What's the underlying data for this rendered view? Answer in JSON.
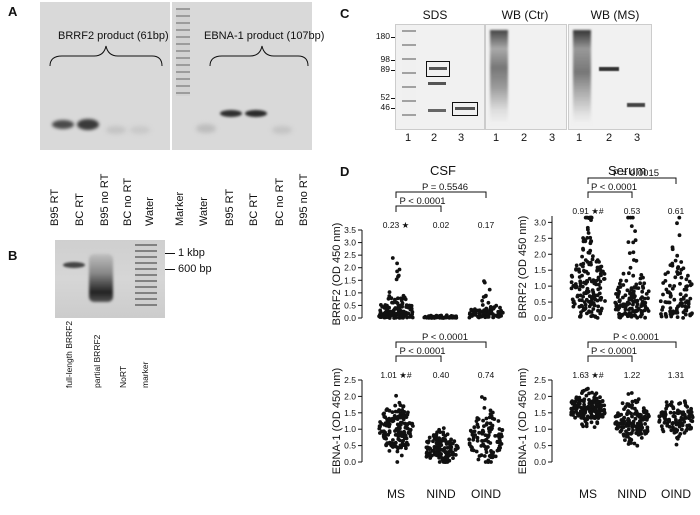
{
  "panel_a": {
    "letter": "A",
    "left_gel_caption": "BRRF2 product (61bp)",
    "right_gel_caption": "EBNA-1 product (107bp)",
    "left_lanes": [
      "B95 RT",
      "BC RT",
      "B95 no RT",
      "BC no RT",
      "Water"
    ],
    "right_lanes": [
      "Marker",
      "Water",
      "B95 RT",
      "BC RT",
      "BC no RT",
      "B95 no RT"
    ]
  },
  "panel_b": {
    "letter": "B",
    "lanes": [
      "full-length BRRF2",
      "partial BRRF2",
      "NoRT",
      "marker"
    ],
    "size_labels": [
      "1 kbp",
      "600 bp"
    ]
  },
  "panel_c": {
    "letter": "C",
    "titles": [
      "SDS",
      "WB (Ctr)",
      "WB (MS)"
    ],
    "mw_markers": [
      "180",
      "98",
      "89",
      "52",
      "46"
    ],
    "lane_numbers": [
      "1",
      "2",
      "3"
    ]
  },
  "panel_d": {
    "letter": "D",
    "column_titles": [
      "CSF",
      "Serum"
    ],
    "groups": [
      "MS",
      "NIND",
      "OIND"
    ],
    "plots": [
      {
        "id": "csf_brrf2",
        "ylabel": "BRRF2 (OD 450 nm)",
        "yticks": [
          "0.0",
          "0.5",
          "1.0",
          "1.5",
          "2.0",
          "2.5",
          "3.0",
          "3.5"
        ],
        "ymin": 0,
        "ymax": 3.5,
        "medians": [
          "0.23",
          "0.02",
          "0.17"
        ],
        "sig_marks": [
          "★",
          "",
          ""
        ],
        "p_labels": [
          "P = 0.5546",
          "P < 0.0001"
        ]
      },
      {
        "id": "serum_brrf2",
        "ylabel": "BRRF2 (OD 450 nm)",
        "yticks": [
          "0.0",
          "0.5",
          "1.0",
          "1.5",
          "2.0",
          "2.5",
          "3.0"
        ],
        "ymin": 0,
        "ymax": 3.2,
        "medians": [
          "0.91",
          "0.53",
          "0.61"
        ],
        "sig_marks": [
          "★#",
          "",
          ""
        ],
        "p_labels": [
          "P = 0.0015",
          "P < 0.0001"
        ]
      },
      {
        "id": "csf_ebna1",
        "ylabel": "EBNA-1 (OD 450 nm)",
        "yticks": [
          "0.0",
          "0.5",
          "1.0",
          "1.5",
          "2.0",
          "2.5"
        ],
        "ymin": 0,
        "ymax": 2.5,
        "medians": [
          "1.01",
          "0.40",
          "0.74"
        ],
        "sig_marks": [
          "★#",
          "",
          ""
        ],
        "p_labels": [
          "P < 0.0001",
          "P < 0.0001"
        ]
      },
      {
        "id": "serum_ebna1",
        "ylabel": "EBNA-1 (OD 450 nm)",
        "yticks": [
          "0.0",
          "0.5",
          "1.0",
          "1.5",
          "2.0",
          "2.5"
        ],
        "ymin": 0,
        "ymax": 2.5,
        "medians": [
          "1.63",
          "1.22",
          "1.31"
        ],
        "sig_marks": [
          "★#",
          "",
          ""
        ],
        "p_labels": [
          "P < 0.0001",
          "P < 0.0001"
        ]
      }
    ]
  },
  "chart_data": [
    {
      "type": "scatter",
      "xlabel": "",
      "ylabel": "BRRF2 (OD 450 nm)",
      "ylim": [
        0,
        3.5
      ],
      "categories": [
        "MS",
        "NIND",
        "OIND"
      ],
      "series": [
        {
          "values_median": [
            0.23,
            0.02,
            0.17
          ]
        }
      ]
    },
    {
      "type": "scatter",
      "xlabel": "",
      "ylabel": "BRRF2 (OD 450 nm)",
      "ylim": [
        0,
        3.2
      ],
      "categories": [
        "MS",
        "NIND",
        "OIND"
      ],
      "series": [
        {
          "values_median": [
            0.91,
            0.53,
            0.61
          ]
        }
      ]
    },
    {
      "type": "scatter",
      "xlabel": "",
      "ylabel": "EBNA-1 (OD 450 nm)",
      "ylim": [
        0,
        2.5
      ],
      "categories": [
        "MS",
        "NIND",
        "OIND"
      ],
      "series": [
        {
          "values_median": [
            1.01,
            0.4,
            0.74
          ]
        }
      ]
    },
    {
      "type": "scatter",
      "xlabel": "",
      "ylabel": "EBNA-1 (OD 450 nm)",
      "ylim": [
        0,
        2.5
      ],
      "categories": [
        "MS",
        "NIND",
        "OIND"
      ],
      "series": [
        {
          "values_median": [
            1.63,
            1.22,
            1.31
          ]
        }
      ]
    }
  ]
}
